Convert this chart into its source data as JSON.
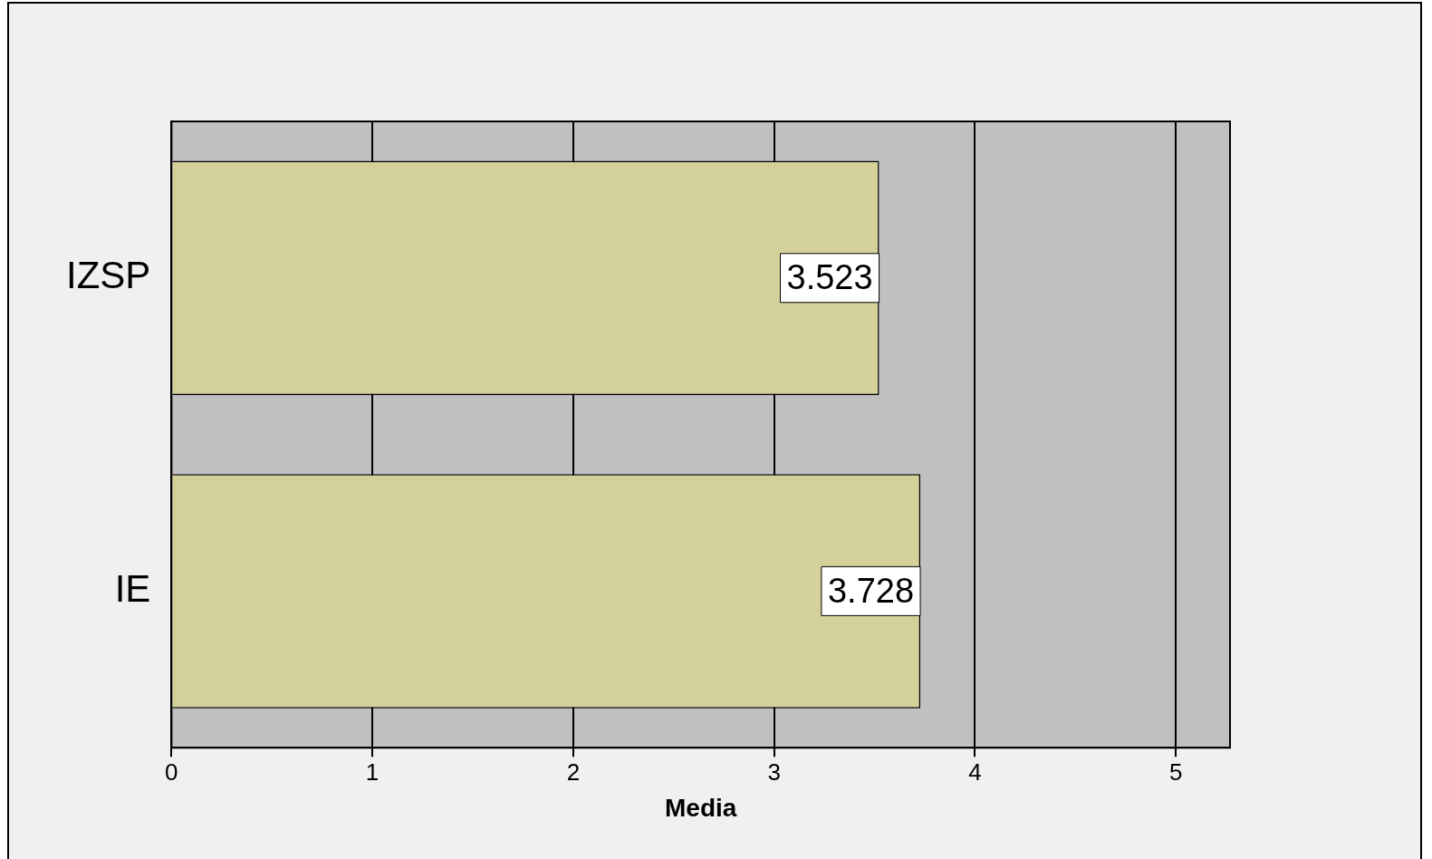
{
  "chart_data": {
    "type": "bar",
    "orientation": "horizontal",
    "categories": [
      "IZSP",
      "IE"
    ],
    "values": [
      3.523,
      3.728
    ],
    "color": "#d4d09a",
    "xlabel": "Media",
    "xlim": [
      0,
      5.27
    ],
    "xticks": [
      0,
      1,
      2,
      3,
      4,
      5
    ],
    "grid": "x",
    "data_labels": true,
    "legend": false
  }
}
